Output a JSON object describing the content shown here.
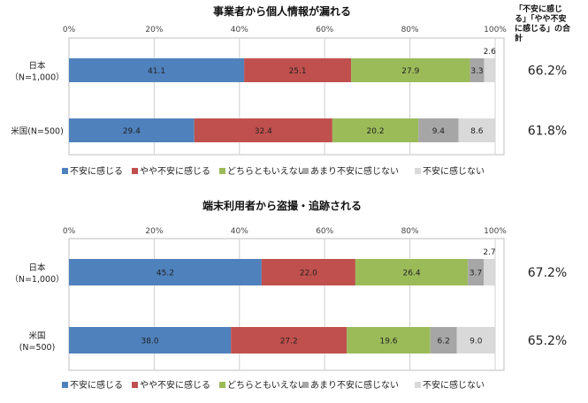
{
  "totals_header_lines": [
    "「不安に感じ",
    "る」「やや不安",
    "に感じる」の合",
    "計"
  ],
  "chart_data": [
    {
      "type": "bar",
      "orientation": "horizontal",
      "stacked": "percent",
      "title": "事業者から個人情報が漏れる",
      "xlim": [
        0,
        100
      ],
      "xticks": [
        "0%",
        "20%",
        "40%",
        "60%",
        "80%",
        "100%"
      ],
      "categories": [
        {
          "name": "日本",
          "n": "（N=1,000）",
          "label_inline": false
        },
        {
          "name": "米国(N=500)",
          "n": "",
          "label_inline": true
        }
      ],
      "series": [
        {
          "name": "不安に感じる",
          "color": "#4f81bd",
          "values": [
            41.1,
            29.4
          ]
        },
        {
          "name": "やや不安に感じる",
          "color": "#c0504d",
          "values": [
            25.1,
            32.4
          ]
        },
        {
          "name": "どちらともいえない",
          "color": "#9bbb59",
          "values": [
            27.9,
            20.2
          ]
        },
        {
          "name": "あまり不安に感じない",
          "color": "#a6a6a6",
          "values": [
            3.3,
            9.4
          ]
        },
        {
          "name": "不安に感じない",
          "color": "#d9d9d9",
          "values": [
            2.6,
            8.6
          ]
        }
      ],
      "totals": [
        "66.2%",
        "61.8%"
      ]
    },
    {
      "type": "bar",
      "orientation": "horizontal",
      "stacked": "percent",
      "title": "端末利用者から盗撮・追跡される",
      "xlim": [
        0,
        100
      ],
      "xticks": [
        "0%",
        "20%",
        "40%",
        "60%",
        "80%",
        "100%"
      ],
      "categories": [
        {
          "name": "日本",
          "n": "（N=1,000）",
          "label_inline": false
        },
        {
          "name": "米国",
          "n": "(N=500)",
          "label_inline": false
        }
      ],
      "series": [
        {
          "name": "不安に感じる",
          "color": "#4f81bd",
          "values": [
            45.2,
            38.0
          ]
        },
        {
          "name": "やや不安に感じる",
          "color": "#c0504d",
          "values": [
            22.0,
            27.2
          ]
        },
        {
          "name": "どちらともいえない",
          "color": "#9bbb59",
          "values": [
            26.4,
            19.6
          ]
        },
        {
          "name": "あまり不安に感じない",
          "color": "#a6a6a6",
          "values": [
            3.7,
            6.2
          ]
        },
        {
          "name": "不安に感じない",
          "color": "#d9d9d9",
          "values": [
            2.7,
            9.0
          ]
        }
      ],
      "totals": [
        "67.2%",
        "65.2%"
      ]
    }
  ]
}
